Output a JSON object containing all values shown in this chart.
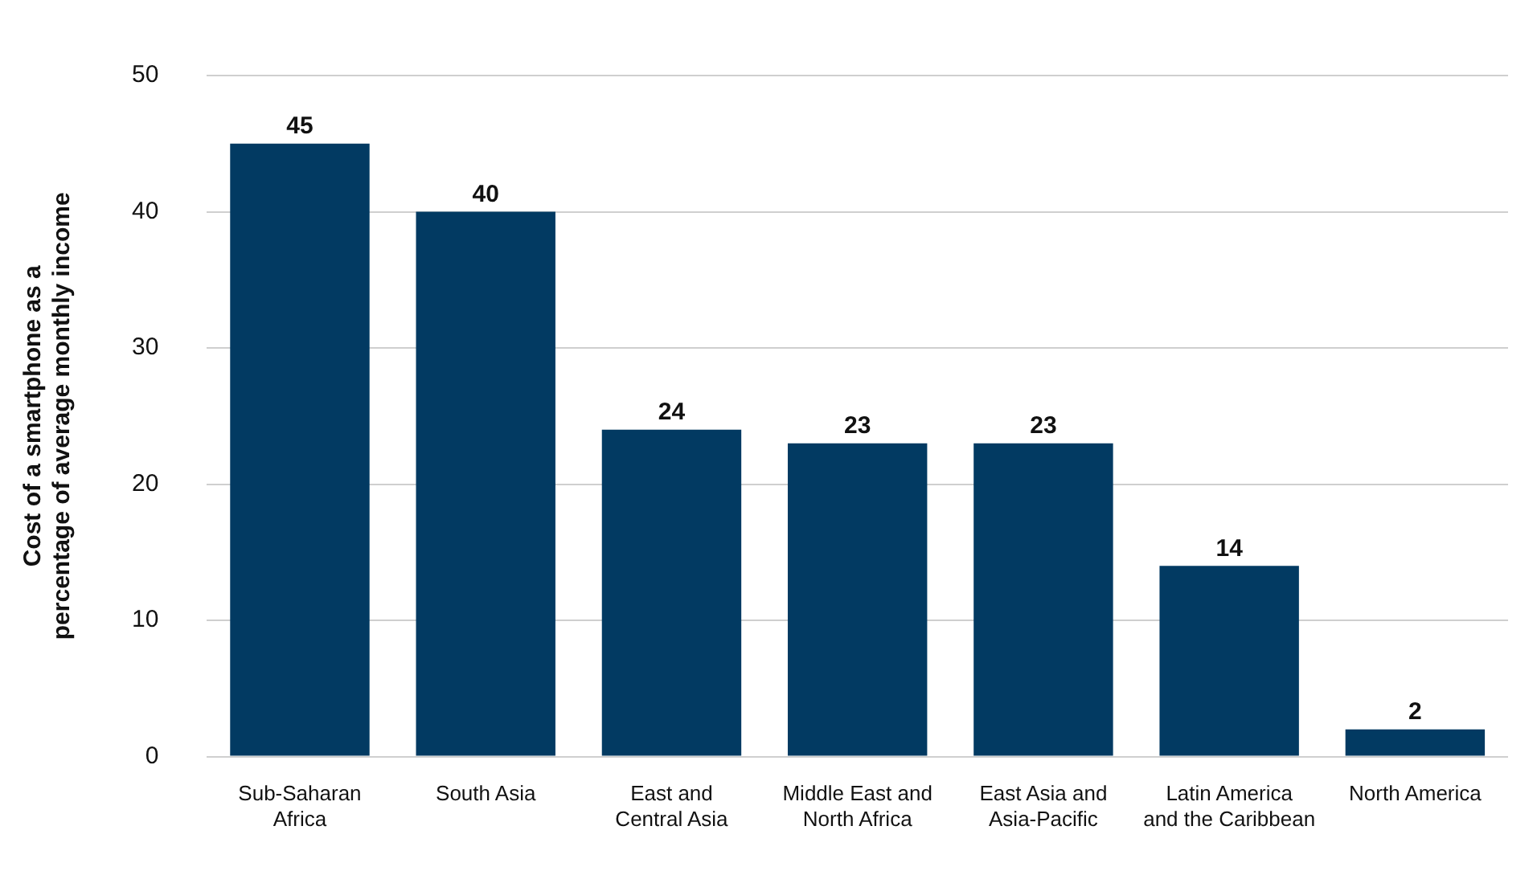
{
  "chart_data": {
    "type": "bar",
    "ylabel": "Cost of a smartphone as a percentage of average monthly income",
    "categories": [
      "Sub-Saharan Africa",
      "South Asia",
      "East and Central Asia",
      "Middle East and North Africa",
      "East Asia and Asia-Pacific",
      "Latin America and the Caribbean",
      "North America"
    ],
    "values": [
      45,
      40,
      24,
      23,
      23,
      14,
      2
    ],
    "color": "#023a62",
    "ylim": [
      0,
      50
    ],
    "yticks": [
      0,
      10,
      20,
      30,
      40,
      50
    ],
    "grid": "y",
    "data_labels": true,
    "legend": false
  }
}
